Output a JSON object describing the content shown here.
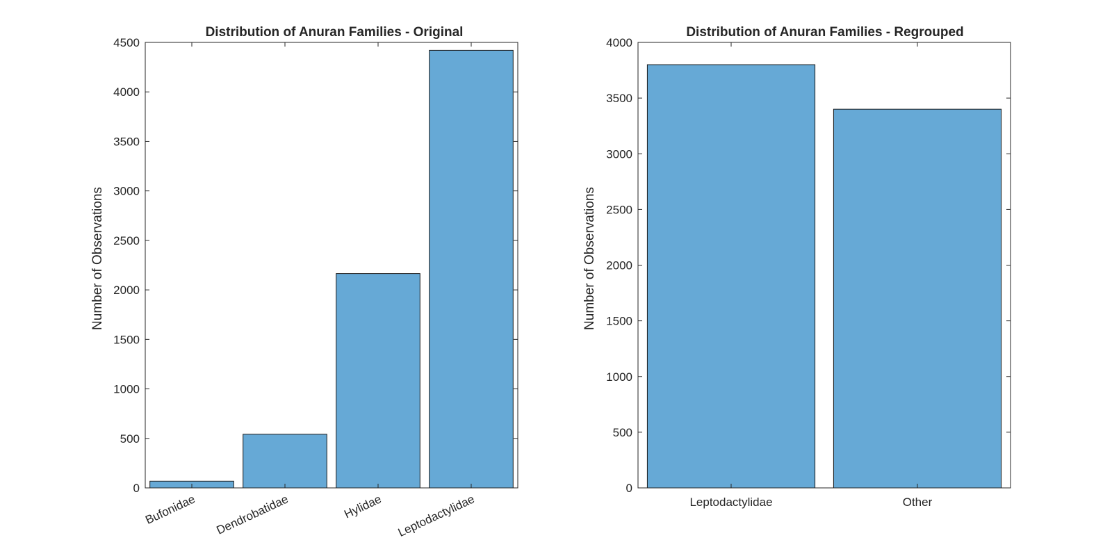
{
  "chart_data": [
    {
      "type": "bar",
      "title": "Distribution of Anuran Families - Original",
      "xlabel": "",
      "ylabel": "Number of Observations",
      "categories": [
        "Bufonidae",
        "Dendrobatidae",
        "Hylidae",
        "Leptodactylidae"
      ],
      "values": [
        68,
        542,
        2165,
        4420
      ],
      "ylim": [
        0,
        4500
      ],
      "yticks": [
        0,
        500,
        1000,
        1500,
        2000,
        2500,
        3000,
        3500,
        4000,
        4500
      ],
      "xtick_rotation": 25,
      "bar_color": "#66a9d6",
      "grid": false
    },
    {
      "type": "bar",
      "title": "Distribution of Anuran Families - Regrouped",
      "xlabel": "",
      "ylabel": "Number of Observations",
      "categories": [
        "Leptodactylidae",
        "Other"
      ],
      "values": [
        3800,
        3400
      ],
      "ylim": [
        0,
        4000
      ],
      "yticks": [
        0,
        500,
        1000,
        1500,
        2000,
        2500,
        3000,
        3500,
        4000
      ],
      "xtick_rotation": 0,
      "bar_color": "#66a9d6",
      "grid": false
    }
  ]
}
